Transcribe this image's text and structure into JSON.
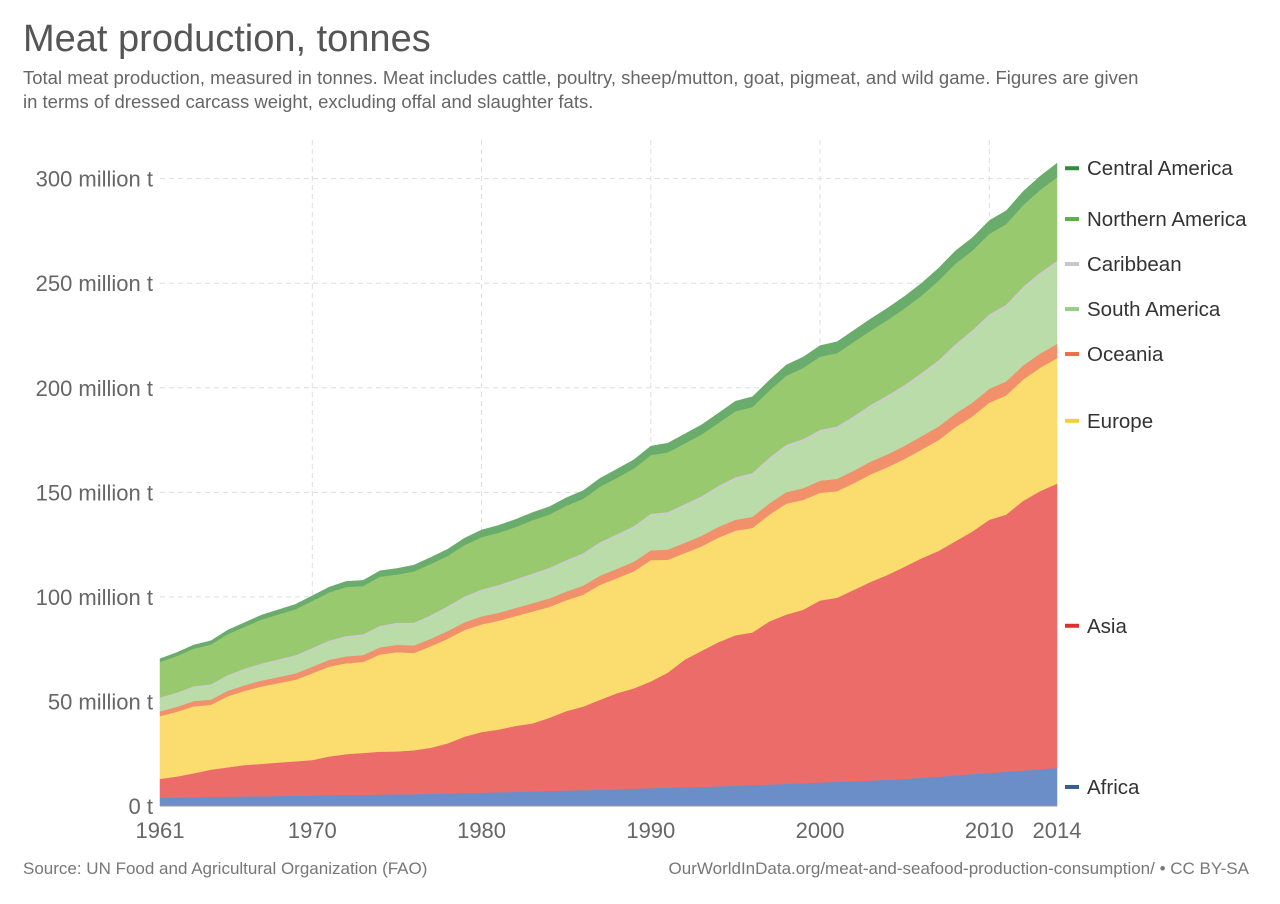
{
  "chart_data": {
    "type": "area",
    "stacked": true,
    "title": "Meat production, tonnes",
    "subtitle": "Total meat production, measured in tonnes. Meat includes cattle, poultry, sheep/mutton, goat, pigmeat, and wild game. Figures are given in terms of dressed carcass weight, excluding offal and slaughter fats.",
    "xlabel": "",
    "ylabel": "",
    "xlim": [
      1961,
      2014
    ],
    "ylim": [
      0,
      320
    ],
    "x_ticks": [
      1961,
      1970,
      1980,
      1990,
      2000,
      2010,
      2014
    ],
    "x_tick_labels": [
      "1961",
      "1970",
      "1980",
      "1990",
      "2000",
      "2010",
      "2014"
    ],
    "y_ticks": [
      0,
      50,
      100,
      150,
      200,
      250,
      300
    ],
    "y_tick_labels": [
      "0 t",
      "50 million t",
      "100 million t",
      "150 million t",
      "200 million t",
      "250 million t",
      "300 million t"
    ],
    "grid": true,
    "legend": "right-inline",
    "x": [
      1961,
      1962,
      1963,
      1964,
      1965,
      1966,
      1967,
      1968,
      1969,
      1970,
      1971,
      1972,
      1973,
      1974,
      1975,
      1976,
      1977,
      1978,
      1979,
      1980,
      1981,
      1982,
      1983,
      1984,
      1985,
      1986,
      1987,
      1988,
      1989,
      1990,
      1991,
      1992,
      1993,
      1994,
      1995,
      1996,
      1997,
      1998,
      1999,
      2000,
      2001,
      2002,
      2003,
      2004,
      2005,
      2006,
      2007,
      2008,
      2009,
      2010,
      2011,
      2012,
      2013,
      2014
    ],
    "series": [
      {
        "name": "Africa",
        "color": "#6c8ec8",
        "values": [
          4.0,
          4.1,
          4.2,
          4.4,
          4.5,
          4.6,
          4.7,
          4.8,
          4.9,
          5.0,
          5.2,
          5.3,
          5.4,
          5.5,
          5.6,
          5.7,
          5.9,
          6.0,
          6.2,
          6.4,
          6.6,
          6.8,
          7.0,
          7.2,
          7.4,
          7.6,
          7.8,
          8.0,
          8.3,
          8.6,
          8.8,
          9.0,
          9.2,
          9.4,
          9.7,
          10.0,
          10.3,
          10.6,
          10.9,
          11.3,
          11.6,
          11.9,
          12.2,
          12.6,
          13.0,
          13.5,
          14.0,
          14.7,
          15.3,
          15.9,
          16.4,
          17.0,
          17.6,
          18.2
        ]
      },
      {
        "name": "Asia",
        "color": "#ec6c6a",
        "values": [
          9.0,
          10.0,
          11.5,
          13.0,
          14.0,
          15.0,
          15.5,
          16.0,
          16.5,
          17.0,
          18.5,
          19.5,
          20.0,
          20.5,
          20.5,
          21.0,
          22.0,
          24.0,
          27.0,
          29.0,
          30.0,
          31.5,
          32.5,
          35.0,
          38.0,
          40.0,
          43.0,
          46.0,
          48.0,
          51.0,
          55.0,
          61.0,
          65.0,
          69.0,
          72.0,
          73.0,
          78.0,
          81.0,
          83.0,
          87.0,
          88.0,
          91.5,
          95.0,
          98.0,
          101.5,
          105.0,
          108.0,
          112.0,
          116.0,
          121.0,
          123.0,
          129.0,
          133.0,
          136.0
        ]
      },
      {
        "name": "Europe",
        "color": "#fbdc6f",
        "values": [
          30.0,
          31.0,
          32.0,
          31.0,
          34.0,
          35.5,
          37.0,
          38.0,
          39.0,
          41.5,
          43.0,
          43.5,
          43.5,
          46.5,
          47.5,
          46.5,
          48.5,
          50.0,
          51.0,
          51.5,
          52.0,
          52.5,
          53.5,
          53.0,
          53.0,
          53.5,
          55.0,
          55.0,
          56.0,
          58.0,
          54.0,
          51.0,
          50.0,
          50.0,
          50.0,
          50.0,
          51.0,
          53.0,
          52.5,
          51.5,
          51.0,
          51.0,
          51.5,
          51.5,
          51.5,
          52.0,
          53.0,
          54.5,
          55.0,
          56.0,
          57.0,
          58.0,
          59.0,
          60.0
        ]
      },
      {
        "name": "Oceania",
        "color": "#f1906a",
        "values": [
          2.3,
          2.4,
          2.5,
          2.5,
          2.6,
          2.7,
          2.8,
          2.9,
          3.0,
          3.1,
          3.2,
          3.3,
          3.3,
          3.4,
          3.5,
          3.6,
          3.6,
          3.7,
          3.7,
          3.8,
          3.8,
          3.9,
          4.0,
          4.1,
          4.2,
          4.3,
          4.4,
          4.5,
          4.6,
          4.7,
          4.8,
          4.9,
          5.0,
          5.1,
          5.2,
          5.3,
          5.4,
          5.5,
          5.6,
          5.8,
          5.9,
          6.0,
          6.1,
          6.2,
          6.3,
          6.4,
          6.5,
          6.5,
          6.6,
          6.6,
          6.7,
          6.7,
          6.8,
          6.8
        ]
      },
      {
        "name": "South America",
        "color": "#b9dca9",
        "values": [
          6.0,
          6.2,
          6.5,
          6.7,
          7.0,
          7.2,
          7.5,
          7.8,
          8.0,
          8.3,
          8.6,
          8.9,
          9.2,
          9.5,
          9.8,
          10.1,
          10.5,
          11.0,
          11.5,
          12.0,
          12.4,
          12.8,
          13.2,
          13.6,
          14.0,
          14.5,
          15.0,
          15.5,
          16.0,
          16.5,
          17.0,
          17.5,
          18.0,
          18.7,
          19.4,
          20.0,
          20.8,
          21.6,
          22.4,
          23.2,
          24.0,
          25.0,
          26.0,
          27.0,
          28.0,
          29.0,
          30.5,
          32.0,
          33.5,
          34.5,
          35.5,
          36.5,
          37.5,
          38.5
        ]
      },
      {
        "name": "Caribbean",
        "color": "#cccccc",
        "values": [
          0.6,
          0.6,
          0.6,
          0.6,
          0.6,
          0.7,
          0.7,
          0.7,
          0.7,
          0.7,
          0.7,
          0.8,
          0.8,
          0.8,
          0.8,
          0.8,
          0.8,
          0.9,
          0.9,
          0.9,
          0.9,
          0.9,
          1.0,
          1.0,
          1.0,
          1.0,
          1.0,
          1.0,
          1.0,
          1.0,
          1.0,
          1.0,
          1.0,
          1.0,
          1.0,
          1.0,
          1.1,
          1.1,
          1.1,
          1.1,
          1.1,
          1.1,
          1.1,
          1.2,
          1.2,
          1.2,
          1.2,
          1.2,
          1.2,
          1.2,
          1.2,
          1.2,
          1.2,
          1.2
        ]
      },
      {
        "name": "Northern America",
        "color": "#98c96f",
        "values": [
          17.0,
          17.5,
          18.0,
          19.0,
          19.5,
          20.0,
          21.0,
          21.5,
          22.0,
          22.5,
          23.0,
          23.5,
          23.0,
          23.5,
          23.0,
          24.5,
          24.5,
          24.0,
          24.5,
          25.0,
          25.0,
          25.0,
          25.5,
          25.5,
          26.0,
          26.0,
          26.5,
          27.0,
          27.5,
          28.0,
          28.5,
          29.0,
          29.5,
          30.0,
          31.5,
          31.5,
          32.0,
          33.0,
          34.0,
          35.0,
          35.0,
          35.5,
          35.5,
          36.0,
          36.5,
          37.0,
          38.0,
          38.5,
          38.0,
          38.5,
          38.5,
          39.0,
          39.5,
          40.0
        ]
      },
      {
        "name": "Central America",
        "color": "#6aac6c",
        "values": [
          1.5,
          1.6,
          1.7,
          1.8,
          1.9,
          2.0,
          2.1,
          2.2,
          2.3,
          2.4,
          2.5,
          2.6,
          2.7,
          2.8,
          2.9,
          3.0,
          3.1,
          3.2,
          3.3,
          3.4,
          3.5,
          3.6,
          3.6,
          3.7,
          3.8,
          3.9,
          4.0,
          4.1,
          4.2,
          4.3,
          4.4,
          4.5,
          4.6,
          4.7,
          4.8,
          4.9,
          5.0,
          5.1,
          5.2,
          5.3,
          5.4,
          5.5,
          5.6,
          5.7,
          5.8,
          5.9,
          6.0,
          6.1,
          6.2,
          6.3,
          6.4,
          6.5,
          6.6,
          6.7
        ]
      }
    ],
    "legend_entries": [
      {
        "label": "Central America",
        "color": "#2e8a3e"
      },
      {
        "label": "Northern America",
        "color": "#5fae48"
      },
      {
        "label": "Caribbean",
        "color": "#c8c8c8"
      },
      {
        "label": "South America",
        "color": "#97cf86"
      },
      {
        "label": "Oceania",
        "color": "#ec6e48"
      },
      {
        "label": "Europe",
        "color": "#f6cc45"
      },
      {
        "label": "Asia",
        "color": "#d9322f"
      },
      {
        "label": "Africa",
        "color": "#355f92"
      }
    ]
  },
  "footer": {
    "source": "Source: UN Food and Agricultural Organization (FAO)",
    "credit": "OurWorldInData.org/meat-and-seafood-production-consumption/ • CC BY-SA"
  }
}
